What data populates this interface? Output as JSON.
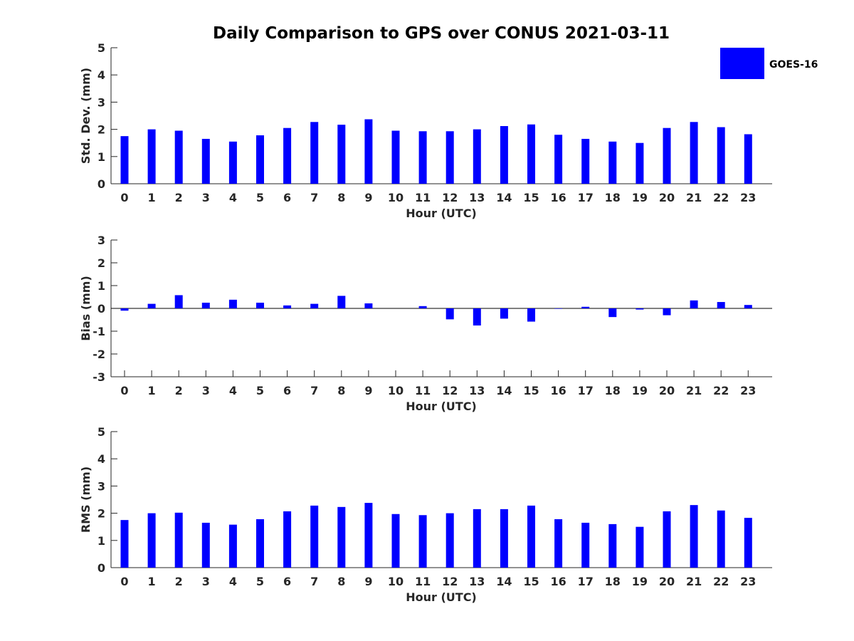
{
  "title": "Daily Comparison to GPS over CONUS 2021-03-11",
  "legend": {
    "label": "GOES-16",
    "color": "#0000ff"
  },
  "chart_data": [
    {
      "type": "bar",
      "name": "std-dev",
      "xlabel": "Hour (UTC)",
      "ylabel": "Std. Dev. (mm)",
      "ylim": [
        0,
        5
      ],
      "yticks": [
        0,
        1,
        2,
        3,
        4,
        5
      ],
      "categories": [
        "0",
        "1",
        "2",
        "3",
        "4",
        "5",
        "6",
        "7",
        "8",
        "9",
        "10",
        "11",
        "12",
        "13",
        "14",
        "15",
        "16",
        "17",
        "18",
        "19",
        "20",
        "21",
        "22",
        "23"
      ],
      "series": [
        {
          "name": "GOES-16",
          "values": [
            1.75,
            2.0,
            1.95,
            1.65,
            1.55,
            1.78,
            2.05,
            2.27,
            2.17,
            2.37,
            1.95,
            1.93,
            1.93,
            2.0,
            2.12,
            2.18,
            1.8,
            1.65,
            1.55,
            1.5,
            2.05,
            2.27,
            2.08,
            1.82
          ]
        }
      ]
    },
    {
      "type": "bar",
      "name": "bias",
      "xlabel": "Hour (UTC)",
      "ylabel": "Bias (mm)",
      "ylim": [
        -3,
        3
      ],
      "yticks": [
        -3,
        -2,
        -1,
        0,
        1,
        2,
        3
      ],
      "categories": [
        "0",
        "1",
        "2",
        "3",
        "4",
        "5",
        "6",
        "7",
        "8",
        "9",
        "10",
        "11",
        "12",
        "13",
        "14",
        "15",
        "16",
        "17",
        "18",
        "19",
        "20",
        "21",
        "22",
        "23"
      ],
      "series": [
        {
          "name": "GOES-16",
          "values": [
            -0.1,
            0.2,
            0.58,
            0.25,
            0.38,
            0.25,
            0.13,
            0.2,
            0.55,
            0.22,
            0.0,
            0.1,
            -0.48,
            -0.75,
            -0.45,
            -0.58,
            -0.02,
            0.07,
            -0.38,
            -0.05,
            -0.3,
            0.35,
            0.28,
            0.15
          ]
        }
      ]
    },
    {
      "type": "bar",
      "name": "rms",
      "xlabel": "Hour (UTC)",
      "ylabel": "RMS (mm)",
      "ylim": [
        0,
        5
      ],
      "yticks": [
        0,
        1,
        2,
        3,
        4,
        5
      ],
      "categories": [
        "0",
        "1",
        "2",
        "3",
        "4",
        "5",
        "6",
        "7",
        "8",
        "9",
        "10",
        "11",
        "12",
        "13",
        "14",
        "15",
        "16",
        "17",
        "18",
        "19",
        "20",
        "21",
        "22",
        "23"
      ],
      "series": [
        {
          "name": "GOES-16",
          "values": [
            1.75,
            2.0,
            2.02,
            1.65,
            1.58,
            1.78,
            2.07,
            2.28,
            2.23,
            2.38,
            1.97,
            1.93,
            2.0,
            2.15,
            2.15,
            2.28,
            1.78,
            1.65,
            1.6,
            1.5,
            2.07,
            2.3,
            2.1,
            1.83
          ]
        }
      ]
    }
  ]
}
